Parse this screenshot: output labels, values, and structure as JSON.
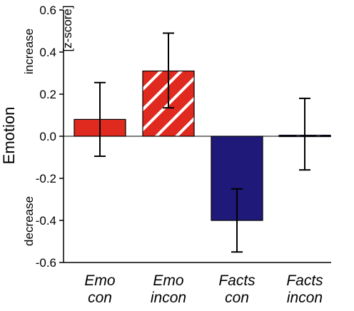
{
  "chart_data": {
    "type": "bar",
    "ylabel": "Emotion",
    "unit_label": "[z-score]",
    "increase_label": "increase",
    "decrease_label": "decrease",
    "ylim": [
      -0.6,
      0.6
    ],
    "yticks": [
      {
        "value": 0.6,
        "label": "0.6"
      },
      {
        "value": 0.4,
        "label": "0.4"
      },
      {
        "value": 0.2,
        "label": "0.2"
      },
      {
        "value": 0.0,
        "label": "0.0"
      },
      {
        "value": -0.2,
        "label": "-0.2"
      },
      {
        "value": -0.4,
        "label": "-0.4"
      },
      {
        "value": -0.6,
        "label": "-0.6"
      }
    ],
    "grid": false,
    "categories": [
      {
        "line1": "Emo",
        "line2": "con",
        "value": 0.08,
        "err_low": -0.095,
        "err_high": 0.255,
        "color": "#e02a1f",
        "pattern": "solid"
      },
      {
        "line1": "Emo",
        "line2": "incon",
        "value": 0.31,
        "err_low": 0.135,
        "err_high": 0.49,
        "color": "#e02a1f",
        "pattern": "hatched"
      },
      {
        "line1": "Facts",
        "line2": "con",
        "value": -0.4,
        "err_low": -0.55,
        "err_high": -0.25,
        "color": "#1f1a7a",
        "pattern": "solid"
      },
      {
        "line1": "Facts",
        "line2": "incon",
        "value": 0.005,
        "err_low": -0.16,
        "err_high": 0.18,
        "color": "#1f1a7a",
        "pattern": "hatched"
      }
    ]
  }
}
